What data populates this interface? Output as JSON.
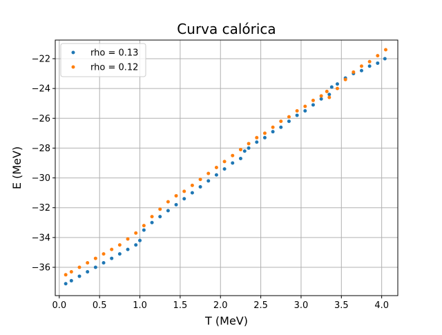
{
  "chart_data": {
    "type": "scatter",
    "title": "Curva calórica",
    "xlabel": "T (MeV)",
    "ylabel": "E (MeV)",
    "xlim": [
      -0.05,
      4.2
    ],
    "ylim": [
      -37.9,
      -20.75
    ],
    "xticks": [
      0.0,
      0.5,
      1.0,
      1.5,
      2.0,
      2.5,
      3.0,
      3.5,
      4.0
    ],
    "xtick_labels": [
      "0.0",
      "0.5",
      "1.0",
      "1.5",
      "2.0",
      "2.5",
      "3.0",
      "3.5",
      "4.0"
    ],
    "yticks": [
      -36,
      -34,
      -32,
      -30,
      -28,
      -26,
      -24,
      -22
    ],
    "ytick_labels": [
      "−36",
      "−34",
      "−32",
      "−30",
      "−28",
      "−26",
      "−24",
      "−22"
    ],
    "grid": true,
    "legend_position": "top-left",
    "series": [
      {
        "name": "rho = 0.13",
        "color": "#1f77b4",
        "x": [
          0.08,
          0.15,
          0.25,
          0.35,
          0.45,
          0.55,
          0.65,
          0.75,
          0.85,
          0.95,
          1.0,
          1.05,
          1.15,
          1.25,
          1.35,
          1.45,
          1.55,
          1.65,
          1.75,
          1.85,
          1.95,
          2.05,
          2.15,
          2.25,
          2.3,
          2.35,
          2.45,
          2.55,
          2.65,
          2.75,
          2.85,
          2.95,
          3.05,
          3.15,
          3.25,
          3.35,
          3.38,
          3.45,
          3.55,
          3.65,
          3.75,
          3.85,
          3.95,
          4.04
        ],
        "y": [
          -37.1,
          -36.9,
          -36.6,
          -36.3,
          -36.0,
          -35.7,
          -35.4,
          -35.1,
          -34.8,
          -34.5,
          -34.2,
          -33.5,
          -33.0,
          -32.6,
          -32.2,
          -31.8,
          -31.4,
          -31.0,
          -30.6,
          -30.2,
          -29.8,
          -29.4,
          -29.0,
          -28.7,
          -28.2,
          -28.0,
          -27.6,
          -27.3,
          -26.9,
          -26.6,
          -26.2,
          -25.8,
          -25.5,
          -25.1,
          -24.7,
          -24.4,
          -23.9,
          -23.7,
          -23.3,
          -23.0,
          -22.8,
          -22.5,
          -22.3,
          -22.0
        ]
      },
      {
        "name": "rho = 0.12",
        "color": "#ff7f0e",
        "x": [
          0.08,
          0.15,
          0.25,
          0.35,
          0.45,
          0.55,
          0.65,
          0.75,
          0.85,
          0.95,
          1.05,
          1.15,
          1.25,
          1.35,
          1.45,
          1.55,
          1.65,
          1.75,
          1.85,
          1.95,
          2.05,
          2.15,
          2.25,
          2.35,
          2.45,
          2.55,
          2.65,
          2.75,
          2.85,
          2.95,
          3.05,
          3.15,
          3.25,
          3.32,
          3.35,
          3.45,
          3.55,
          3.65,
          3.75,
          3.85,
          3.95,
          4.05
        ],
        "y": [
          -36.5,
          -36.3,
          -36.0,
          -35.7,
          -35.4,
          -35.1,
          -34.8,
          -34.5,
          -34.1,
          -33.7,
          -33.2,
          -32.6,
          -32.1,
          -31.6,
          -31.2,
          -30.9,
          -30.5,
          -30.1,
          -29.7,
          -29.3,
          -28.9,
          -28.5,
          -28.1,
          -27.7,
          -27.3,
          -27.0,
          -26.6,
          -26.2,
          -25.9,
          -25.5,
          -25.2,
          -24.8,
          -24.5,
          -24.2,
          -24.6,
          -24.0,
          -23.4,
          -22.9,
          -22.5,
          -22.2,
          -21.8,
          -21.4
        ]
      }
    ]
  }
}
